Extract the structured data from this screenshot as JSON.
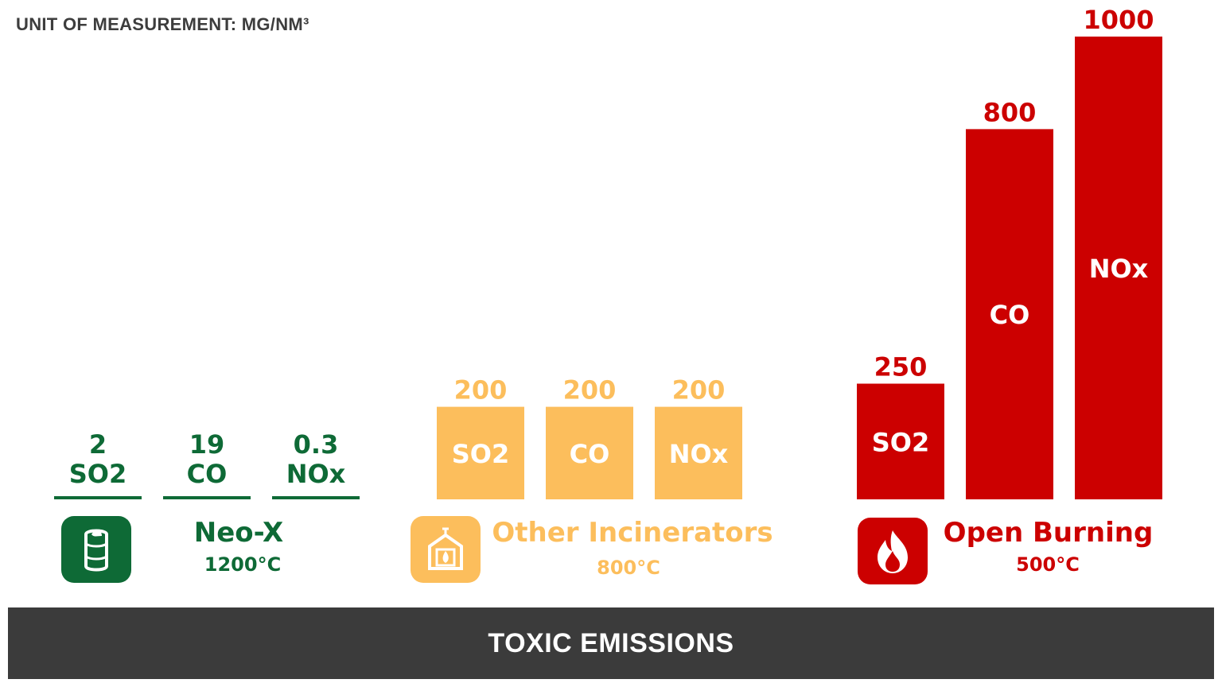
{
  "unit_label": "UNIT OF MEASUREMENT: MG/NM³",
  "footer_title": "TOXIC EMISSIONS",
  "colors": {
    "neo_x": "#0e6a36",
    "other": "#fcbe5c",
    "open": "#cc0000",
    "footer_bg": "#3b3b3b"
  },
  "groups": [
    {
      "title": "Neo-X",
      "temperature": "1200°C",
      "icon": "barrel-leaf-icon"
    },
    {
      "title": "Other Incinerators",
      "temperature": "800°C",
      "icon": "incinerator-icon"
    },
    {
      "title": "Open Burning",
      "temperature": "500°C",
      "icon": "fire-icon"
    }
  ],
  "chart_data": {
    "type": "bar",
    "ylabel": "MG/NM³",
    "ylim": [
      0,
      1000
    ],
    "categories": [
      "SO2",
      "CO",
      "NOx"
    ],
    "series": [
      {
        "name": "Neo-X",
        "values": [
          2,
          19,
          0.3
        ],
        "value_labels": [
          "2",
          "19",
          "0.3"
        ]
      },
      {
        "name": "Other Incinerators",
        "values": [
          200,
          200,
          200
        ],
        "value_labels": [
          "200",
          "200",
          "200"
        ]
      },
      {
        "name": "Open Burning",
        "values": [
          250,
          800,
          1000
        ],
        "value_labels": [
          "250",
          "800",
          "1000"
        ]
      }
    ]
  }
}
